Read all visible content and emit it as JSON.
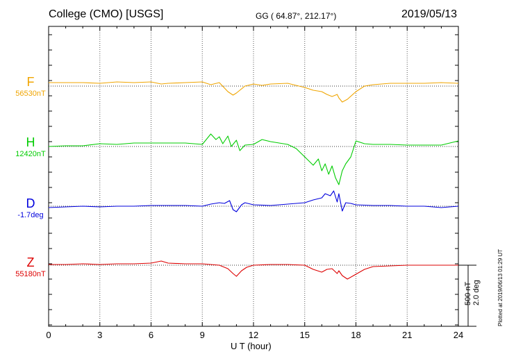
{
  "header": {
    "station": "College (CMO)  [USGS]",
    "coords": "GG ( 64.87°, 212.17°)",
    "date": "2019/05/13"
  },
  "footer": {
    "plotted": "Plotted at 2019/06/13 01:29 UT"
  },
  "scale": {
    "nt": "500 nT",
    "deg": "2.0 deg"
  },
  "chart_data": {
    "type": "line",
    "xlabel": "U T (hour)",
    "xlim": [
      0,
      24
    ],
    "xticks": [
      0,
      3,
      6,
      9,
      12,
      15,
      18,
      21,
      24
    ],
    "grid": true,
    "scale_note": "500 nT / 2.0 deg per vertical bar",
    "series": [
      {
        "name": "F",
        "baseline": "56530nT",
        "color": "#f0a500",
        "x": [
          0,
          1,
          2,
          3,
          4,
          5,
          6,
          6.6,
          7,
          8,
          9,
          9.5,
          10,
          10.5,
          10.8,
          11,
          11.2,
          11.5,
          12,
          12.5,
          13,
          14,
          15,
          15.5,
          16,
          16.3,
          16.6,
          16.9,
          17,
          17.2,
          17.5,
          18,
          18.5,
          19,
          20,
          21,
          22,
          23,
          24
        ],
        "y": [
          5,
          5,
          5,
          4,
          6,
          5,
          6,
          3,
          4,
          5,
          6,
          2,
          5,
          -8,
          -13,
          -10,
          -6,
          0,
          3,
          1,
          3,
          4,
          -2,
          -6,
          -8,
          -12,
          -15,
          -12,
          -17,
          -23,
          -19,
          -8,
          0,
          2,
          4,
          4,
          4,
          5,
          4
        ]
      },
      {
        "name": "H",
        "baseline": "12420nT",
        "color": "#00cc00",
        "x": [
          0,
          1,
          2,
          3,
          4,
          5,
          6,
          7,
          8,
          9,
          9.5,
          9.8,
          10,
          10.2,
          10.5,
          10.7,
          11,
          11.2,
          11.5,
          12,
          12.5,
          13,
          14,
          14.5,
          15,
          15.5,
          15.8,
          16,
          16.2,
          16.4,
          16.6,
          16.8,
          17,
          17.2,
          17.4,
          17.7,
          18,
          18.5,
          19,
          20,
          21,
          22,
          23,
          24
        ],
        "y": [
          0,
          1,
          1,
          4,
          3,
          5,
          5,
          5,
          5,
          3,
          18,
          10,
          14,
          4,
          15,
          0,
          9,
          -6,
          2,
          3,
          10,
          7,
          3,
          -3,
          -15,
          -27,
          -18,
          -35,
          -25,
          -40,
          -28,
          -45,
          -55,
          -35,
          -25,
          -15,
          8,
          4,
          3,
          3,
          2,
          2,
          2,
          8
        ]
      },
      {
        "name": "D",
        "baseline": "-1.7deg",
        "color": "#0000dd",
        "x": [
          0,
          1,
          2,
          3,
          4,
          5,
          6,
          7,
          8,
          9,
          9.5,
          10,
          10.3,
          10.6,
          10.8,
          11,
          11.3,
          11.5,
          12,
          13,
          14,
          15,
          15.5,
          16,
          16.2,
          16.5,
          16.7,
          16.9,
          17,
          17.2,
          17.4,
          17.7,
          18,
          19,
          20,
          21,
          22,
          23,
          24
        ],
        "y": [
          -2,
          -1,
          0,
          -1,
          0,
          0,
          1,
          1,
          1,
          0,
          3,
          5,
          4,
          8,
          -5,
          -8,
          2,
          5,
          2,
          1,
          3,
          5,
          9,
          12,
          18,
          15,
          22,
          6,
          18,
          -7,
          5,
          4,
          2,
          1,
          1,
          0,
          0,
          -2,
          0
        ]
      },
      {
        "name": "Z",
        "baseline": "55180nT",
        "color": "#dd0000",
        "x": [
          0,
          1,
          2,
          3,
          4,
          5,
          6,
          6.6,
          7,
          8,
          9,
          10,
          10.5,
          10.8,
          11,
          11.3,
          11.6,
          12,
          13,
          14,
          15,
          15.5,
          16,
          16.3,
          16.6,
          16.9,
          17,
          17.2,
          17.5,
          18,
          18.5,
          19,
          20,
          21,
          22,
          23,
          24
        ],
        "y": [
          1,
          1,
          2,
          1,
          2,
          2,
          3,
          6,
          3,
          2,
          2,
          0,
          -5,
          -12,
          -16,
          -8,
          -3,
          0,
          1,
          1,
          0,
          -6,
          -10,
          -6,
          -5,
          -12,
          -8,
          -15,
          -20,
          -13,
          -6,
          -2,
          -1,
          0,
          0,
          0,
          0
        ]
      }
    ]
  }
}
